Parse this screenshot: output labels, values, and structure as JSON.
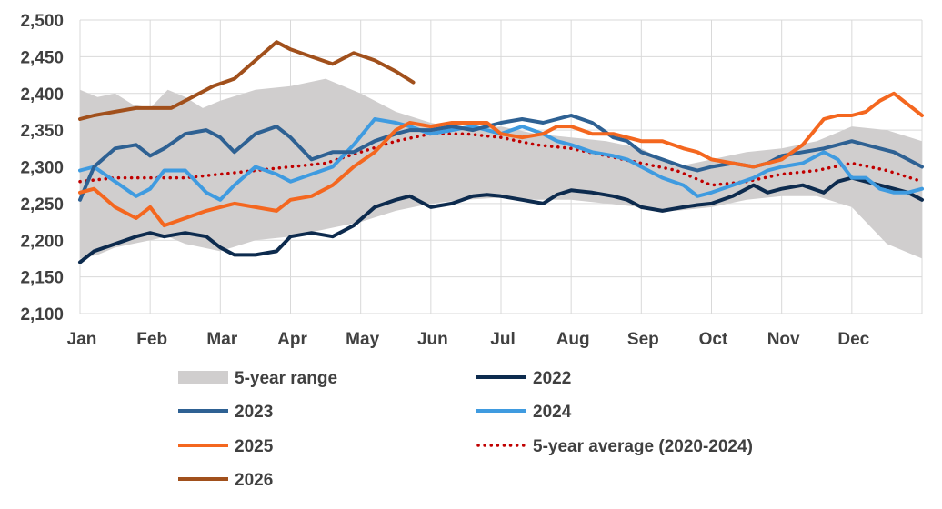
{
  "chart_data": {
    "type": "line",
    "title": "",
    "xlabel": "",
    "ylabel": "",
    "ylim": [
      2100,
      2500
    ],
    "yticks": [
      2100,
      2150,
      2200,
      2250,
      2300,
      2350,
      2400,
      2450,
      2500
    ],
    "ytick_labels": [
      "2,100",
      "2,150",
      "2,200",
      "2,250",
      "2,300",
      "2,350",
      "2,400",
      "2,450",
      "2,500"
    ],
    "months": [
      "Jan",
      "Feb",
      "Mar",
      "Apr",
      "May",
      "Jun",
      "Jul",
      "Aug",
      "Sep",
      "Oct",
      "Nov",
      "Dec"
    ],
    "x_unit": "month (0 = start of Jan, 12 = end of Dec)",
    "grid": true,
    "legend_position": "bottom",
    "range": {
      "name": "5-year range",
      "color": "#d0cece",
      "x": [
        0,
        0.25,
        0.5,
        0.75,
        1,
        1.25,
        1.5,
        1.75,
        2,
        2.5,
        3,
        3.5,
        4,
        4.5,
        5,
        5.5,
        6,
        6.5,
        7,
        7.5,
        8,
        8.5,
        9,
        9.5,
        10,
        10.5,
        11,
        11.5,
        12
      ],
      "low": [
        2175,
        2180,
        2190,
        2195,
        2200,
        2205,
        2195,
        2190,
        2185,
        2200,
        2205,
        2215,
        2225,
        2240,
        2250,
        2255,
        2258,
        2255,
        2255,
        2250,
        2245,
        2240,
        2245,
        2255,
        2260,
        2260,
        2245,
        2195,
        2175
      ],
      "high": [
        2405,
        2395,
        2400,
        2385,
        2380,
        2405,
        2395,
        2380,
        2390,
        2405,
        2410,
        2420,
        2400,
        2375,
        2360,
        2350,
        2355,
        2345,
        2340,
        2335,
        2325,
        2300,
        2310,
        2320,
        2325,
        2335,
        2355,
        2350,
        2335
      ]
    },
    "series": [
      {
        "name": "2022",
        "color": "#0d2b4e",
        "dash": false,
        "x": [
          0,
          0.2,
          0.5,
          0.8,
          1,
          1.2,
          1.5,
          1.8,
          2,
          2.2,
          2.5,
          2.8,
          3,
          3.3,
          3.6,
          3.9,
          4.2,
          4.5,
          4.7,
          5,
          5.3,
          5.6,
          5.8,
          6,
          6.3,
          6.6,
          6.8,
          7,
          7.3,
          7.6,
          7.8,
          8,
          8.3,
          8.6,
          8.8,
          9,
          9.3,
          9.6,
          9.8,
          10,
          10.3,
          10.6,
          10.8,
          11,
          11.2,
          11.4,
          11.6,
          11.8,
          12
        ],
        "y": [
          2170,
          2185,
          2195,
          2205,
          2210,
          2205,
          2210,
          2205,
          2190,
          2180,
          2180,
          2185,
          2205,
          2210,
          2205,
          2220,
          2245,
          2255,
          2260,
          2245,
          2250,
          2260,
          2262,
          2260,
          2255,
          2250,
          2262,
          2268,
          2265,
          2260,
          2255,
          2245,
          2240,
          2245,
          2248,
          2250,
          2260,
          2275,
          2265,
          2270,
          2275,
          2265,
          2280,
          2285,
          2280,
          2275,
          2270,
          2265,
          2255
        ]
      },
      {
        "name": "2023",
        "color": "#2e6193",
        "dash": false,
        "x": [
          0,
          0.2,
          0.5,
          0.8,
          1,
          1.2,
          1.5,
          1.8,
          2,
          2.2,
          2.5,
          2.8,
          3,
          3.3,
          3.6,
          3.9,
          4.2,
          4.5,
          4.7,
          5,
          5.3,
          5.6,
          5.8,
          6,
          6.3,
          6.6,
          6.8,
          7,
          7.3,
          7.6,
          7.8,
          8,
          8.3,
          8.6,
          8.8,
          9,
          9.3,
          9.6,
          9.8,
          10,
          10.3,
          10.6,
          10.8,
          11,
          11.2,
          11.4,
          11.6,
          11.8,
          12
        ],
        "y": [
          2255,
          2300,
          2325,
          2330,
          2315,
          2325,
          2345,
          2350,
          2340,
          2320,
          2345,
          2355,
          2340,
          2310,
          2320,
          2320,
          2335,
          2345,
          2350,
          2350,
          2355,
          2350,
          2355,
          2360,
          2365,
          2360,
          2365,
          2370,
          2360,
          2340,
          2335,
          2320,
          2310,
          2300,
          2295,
          2300,
          2305,
          2300,
          2305,
          2315,
          2320,
          2325,
          2330,
          2335,
          2330,
          2325,
          2320,
          2310,
          2300
        ]
      },
      {
        "name": "2024",
        "color": "#3f9be0",
        "dash": false,
        "x": [
          0,
          0.2,
          0.5,
          0.8,
          1,
          1.2,
          1.5,
          1.8,
          2,
          2.2,
          2.5,
          2.8,
          3,
          3.3,
          3.6,
          3.9,
          4.2,
          4.5,
          4.7,
          5,
          5.3,
          5.6,
          5.8,
          6,
          6.3,
          6.6,
          6.8,
          7,
          7.3,
          7.6,
          7.8,
          8,
          8.3,
          8.6,
          8.8,
          9,
          9.3,
          9.6,
          9.8,
          10,
          10.3,
          10.6,
          10.8,
          11,
          11.2,
          11.4,
          11.6,
          11.8,
          12
        ],
        "y": [
          2295,
          2300,
          2280,
          2260,
          2270,
          2295,
          2295,
          2265,
          2255,
          2275,
          2300,
          2290,
          2280,
          2290,
          2300,
          2330,
          2365,
          2360,
          2355,
          2345,
          2350,
          2355,
          2350,
          2345,
          2355,
          2345,
          2335,
          2330,
          2320,
          2315,
          2310,
          2300,
          2285,
          2275,
          2260,
          2265,
          2275,
          2285,
          2295,
          2300,
          2305,
          2320,
          2310,
          2285,
          2285,
          2270,
          2265,
          2265,
          2270
        ]
      },
      {
        "name": "2025",
        "color": "#f4671f",
        "dash": false,
        "x": [
          0,
          0.2,
          0.5,
          0.8,
          1,
          1.2,
          1.5,
          1.8,
          2,
          2.2,
          2.5,
          2.8,
          3,
          3.3,
          3.6,
          3.9,
          4.2,
          4.5,
          4.7,
          5,
          5.3,
          5.6,
          5.8,
          6,
          6.3,
          6.6,
          6.8,
          7,
          7.3,
          7.6,
          7.8,
          8,
          8.3,
          8.6,
          8.8,
          9,
          9.3,
          9.6,
          9.8,
          10,
          10.3,
          10.6,
          10.8,
          11,
          11.2,
          11.4,
          11.6,
          11.8,
          12
        ],
        "y": [
          2265,
          2270,
          2245,
          2230,
          2245,
          2220,
          2230,
          2240,
          2245,
          2250,
          2245,
          2240,
          2255,
          2260,
          2275,
          2300,
          2320,
          2350,
          2360,
          2355,
          2360,
          2360,
          2360,
          2345,
          2340,
          2345,
          2355,
          2355,
          2345,
          2345,
          2340,
          2335,
          2335,
          2325,
          2320,
          2310,
          2305,
          2300,
          2305,
          2310,
          2330,
          2365,
          2370,
          2370,
          2375,
          2390,
          2400,
          2385,
          2370
        ]
      },
      {
        "name": "2026",
        "color": "#a1501c",
        "dash": false,
        "x": [
          0,
          0.2,
          0.5,
          0.8,
          1,
          1.3,
          1.6,
          1.9,
          2.2,
          2.5,
          2.8,
          3.0,
          3.3,
          3.6,
          3.9,
          4.2,
          4.5,
          4.75
        ],
        "y": [
          2365,
          2370,
          2375,
          2380,
          2380,
          2380,
          2395,
          2410,
          2420,
          2445,
          2470,
          2460,
          2450,
          2440,
          2455,
          2445,
          2430,
          2415
        ]
      },
      {
        "name": "5-year average (2020-2024)",
        "color": "#c00000",
        "dash": true,
        "x": [
          0,
          0.5,
          1,
          1.5,
          2,
          2.5,
          3,
          3.5,
          4,
          4.5,
          5,
          5.5,
          6,
          6.5,
          7,
          7.5,
          8,
          8.5,
          9,
          9.5,
          10,
          10.5,
          11,
          11.5,
          12
        ],
        "y": [
          2280,
          2285,
          2285,
          2285,
          2290,
          2295,
          2300,
          2305,
          2320,
          2335,
          2345,
          2345,
          2340,
          2330,
          2325,
          2315,
          2305,
          2295,
          2275,
          2280,
          2290,
          2295,
          2305,
          2295,
          2280
        ]
      }
    ],
    "legend": [
      {
        "key": "range",
        "label": "5-year range"
      },
      {
        "key": "2022",
        "label": "2022"
      },
      {
        "key": "2023",
        "label": "2023"
      },
      {
        "key": "2024",
        "label": "2024"
      },
      {
        "key": "2025",
        "label": "2025"
      },
      {
        "key": "avg",
        "label": "5-year average (2020-2024)"
      },
      {
        "key": "2026",
        "label": "2026"
      }
    ]
  }
}
